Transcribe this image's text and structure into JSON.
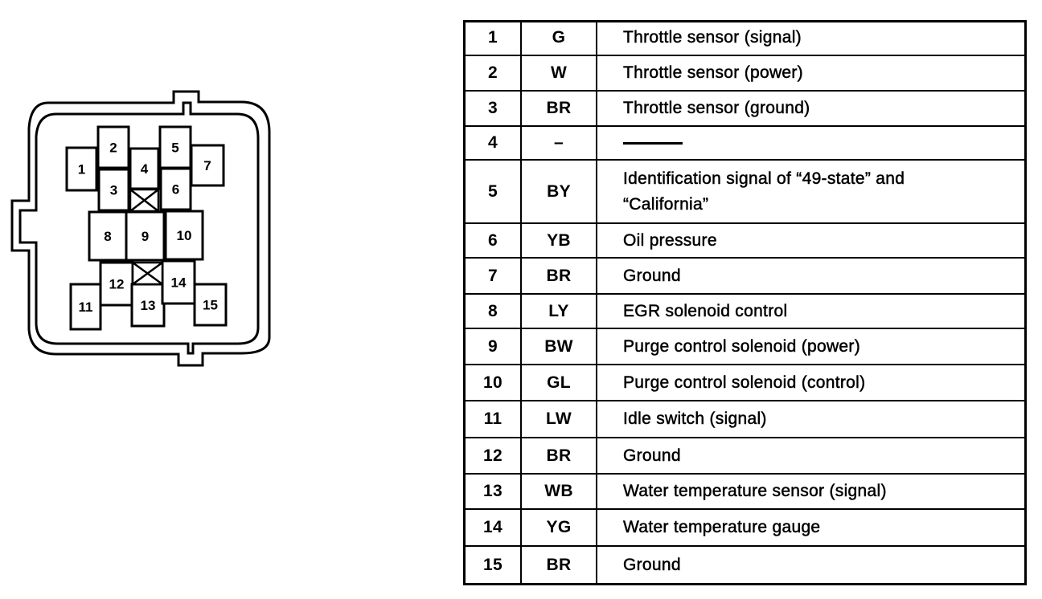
{
  "connector": {
    "pins": [
      "1",
      "2",
      "3",
      "4",
      "5",
      "6",
      "7",
      "8",
      "9",
      "10",
      "11",
      "12",
      "13",
      "14",
      "15"
    ]
  },
  "table": {
    "rows": [
      {
        "pin": "1",
        "wire": "G",
        "description": "Throttle sensor (signal)"
      },
      {
        "pin": "2",
        "wire": "W",
        "description": "Throttle sensor (power)"
      },
      {
        "pin": "3",
        "wire": "BR",
        "description": "Throttle sensor (ground)"
      },
      {
        "pin": "4",
        "wire": "–",
        "description": "———"
      },
      {
        "pin": "5",
        "wire": "BY",
        "description": "Identification signal of “49-state” and “California”"
      },
      {
        "pin": "6",
        "wire": "YB",
        "description": "Oil pressure"
      },
      {
        "pin": "7",
        "wire": "BR",
        "description": "Ground"
      },
      {
        "pin": "8",
        "wire": "LY",
        "description": "EGR solenoid control"
      },
      {
        "pin": "9",
        "wire": "BW",
        "description": "Purge control solenoid (power)"
      },
      {
        "pin": "10",
        "wire": "GL",
        "description": "Purge control solenoid (control)"
      },
      {
        "pin": "11",
        "wire": "LW",
        "description": "Idle switch (signal)"
      },
      {
        "pin": "12",
        "wire": "BR",
        "description": "Ground"
      },
      {
        "pin": "13",
        "wire": "WB",
        "description": "Water temperature sensor (signal)"
      },
      {
        "pin": "14",
        "wire": "YG",
        "description": "Water temperature gauge"
      },
      {
        "pin": "15",
        "wire": "BR",
        "description": "Ground"
      }
    ]
  }
}
